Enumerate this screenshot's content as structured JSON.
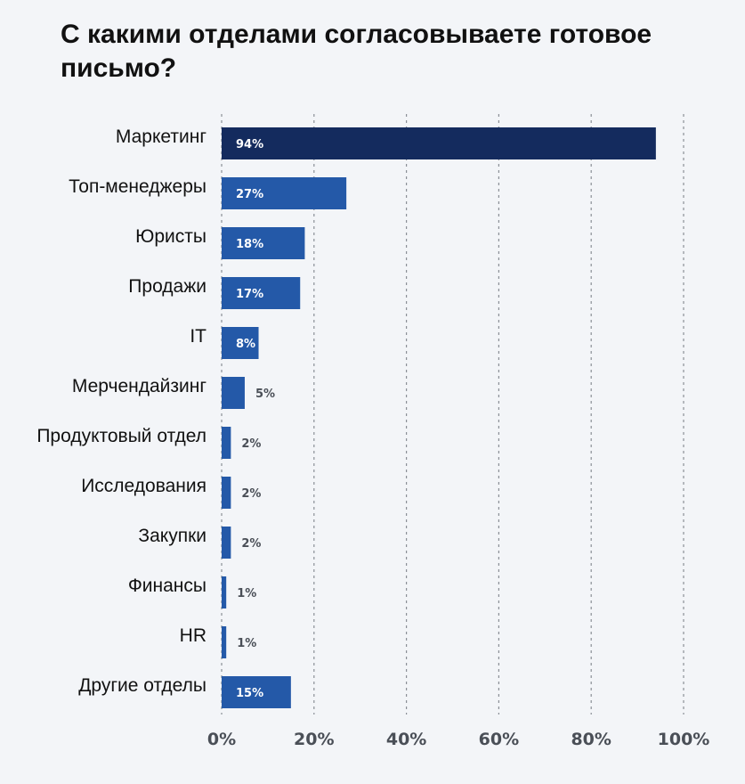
{
  "chart_data": {
    "type": "bar",
    "orientation": "horizontal",
    "title": "С какими отделами согласовываете готовое письмо?",
    "categories": [
      "Маркетинг",
      "Топ-менеджеры",
      "Юристы",
      "Продажи",
      "IT",
      "Мерчендайзинг",
      "Продуктовый отдел",
      "Исследования",
      "Закупки",
      "Финансы",
      "HR",
      "Другие отделы"
    ],
    "values": [
      94,
      27,
      18,
      17,
      8,
      5,
      2,
      2,
      2,
      1,
      1,
      15
    ],
    "value_labels": [
      "94%",
      "27%",
      "18%",
      "17%",
      "8%",
      "5%",
      "2%",
      "2%",
      "2%",
      "1%",
      "1%",
      "15%"
    ],
    "xlim": [
      0,
      100
    ],
    "xticks": [
      "0%",
      "20%",
      "40%",
      "60%",
      "80%",
      "100%"
    ],
    "grid": "vertical dotted",
    "colors": {
      "highlight": "#142b5e",
      "bar": "#2459a8",
      "grid": "#8a8f96",
      "background": "#f3f5f8"
    }
  }
}
